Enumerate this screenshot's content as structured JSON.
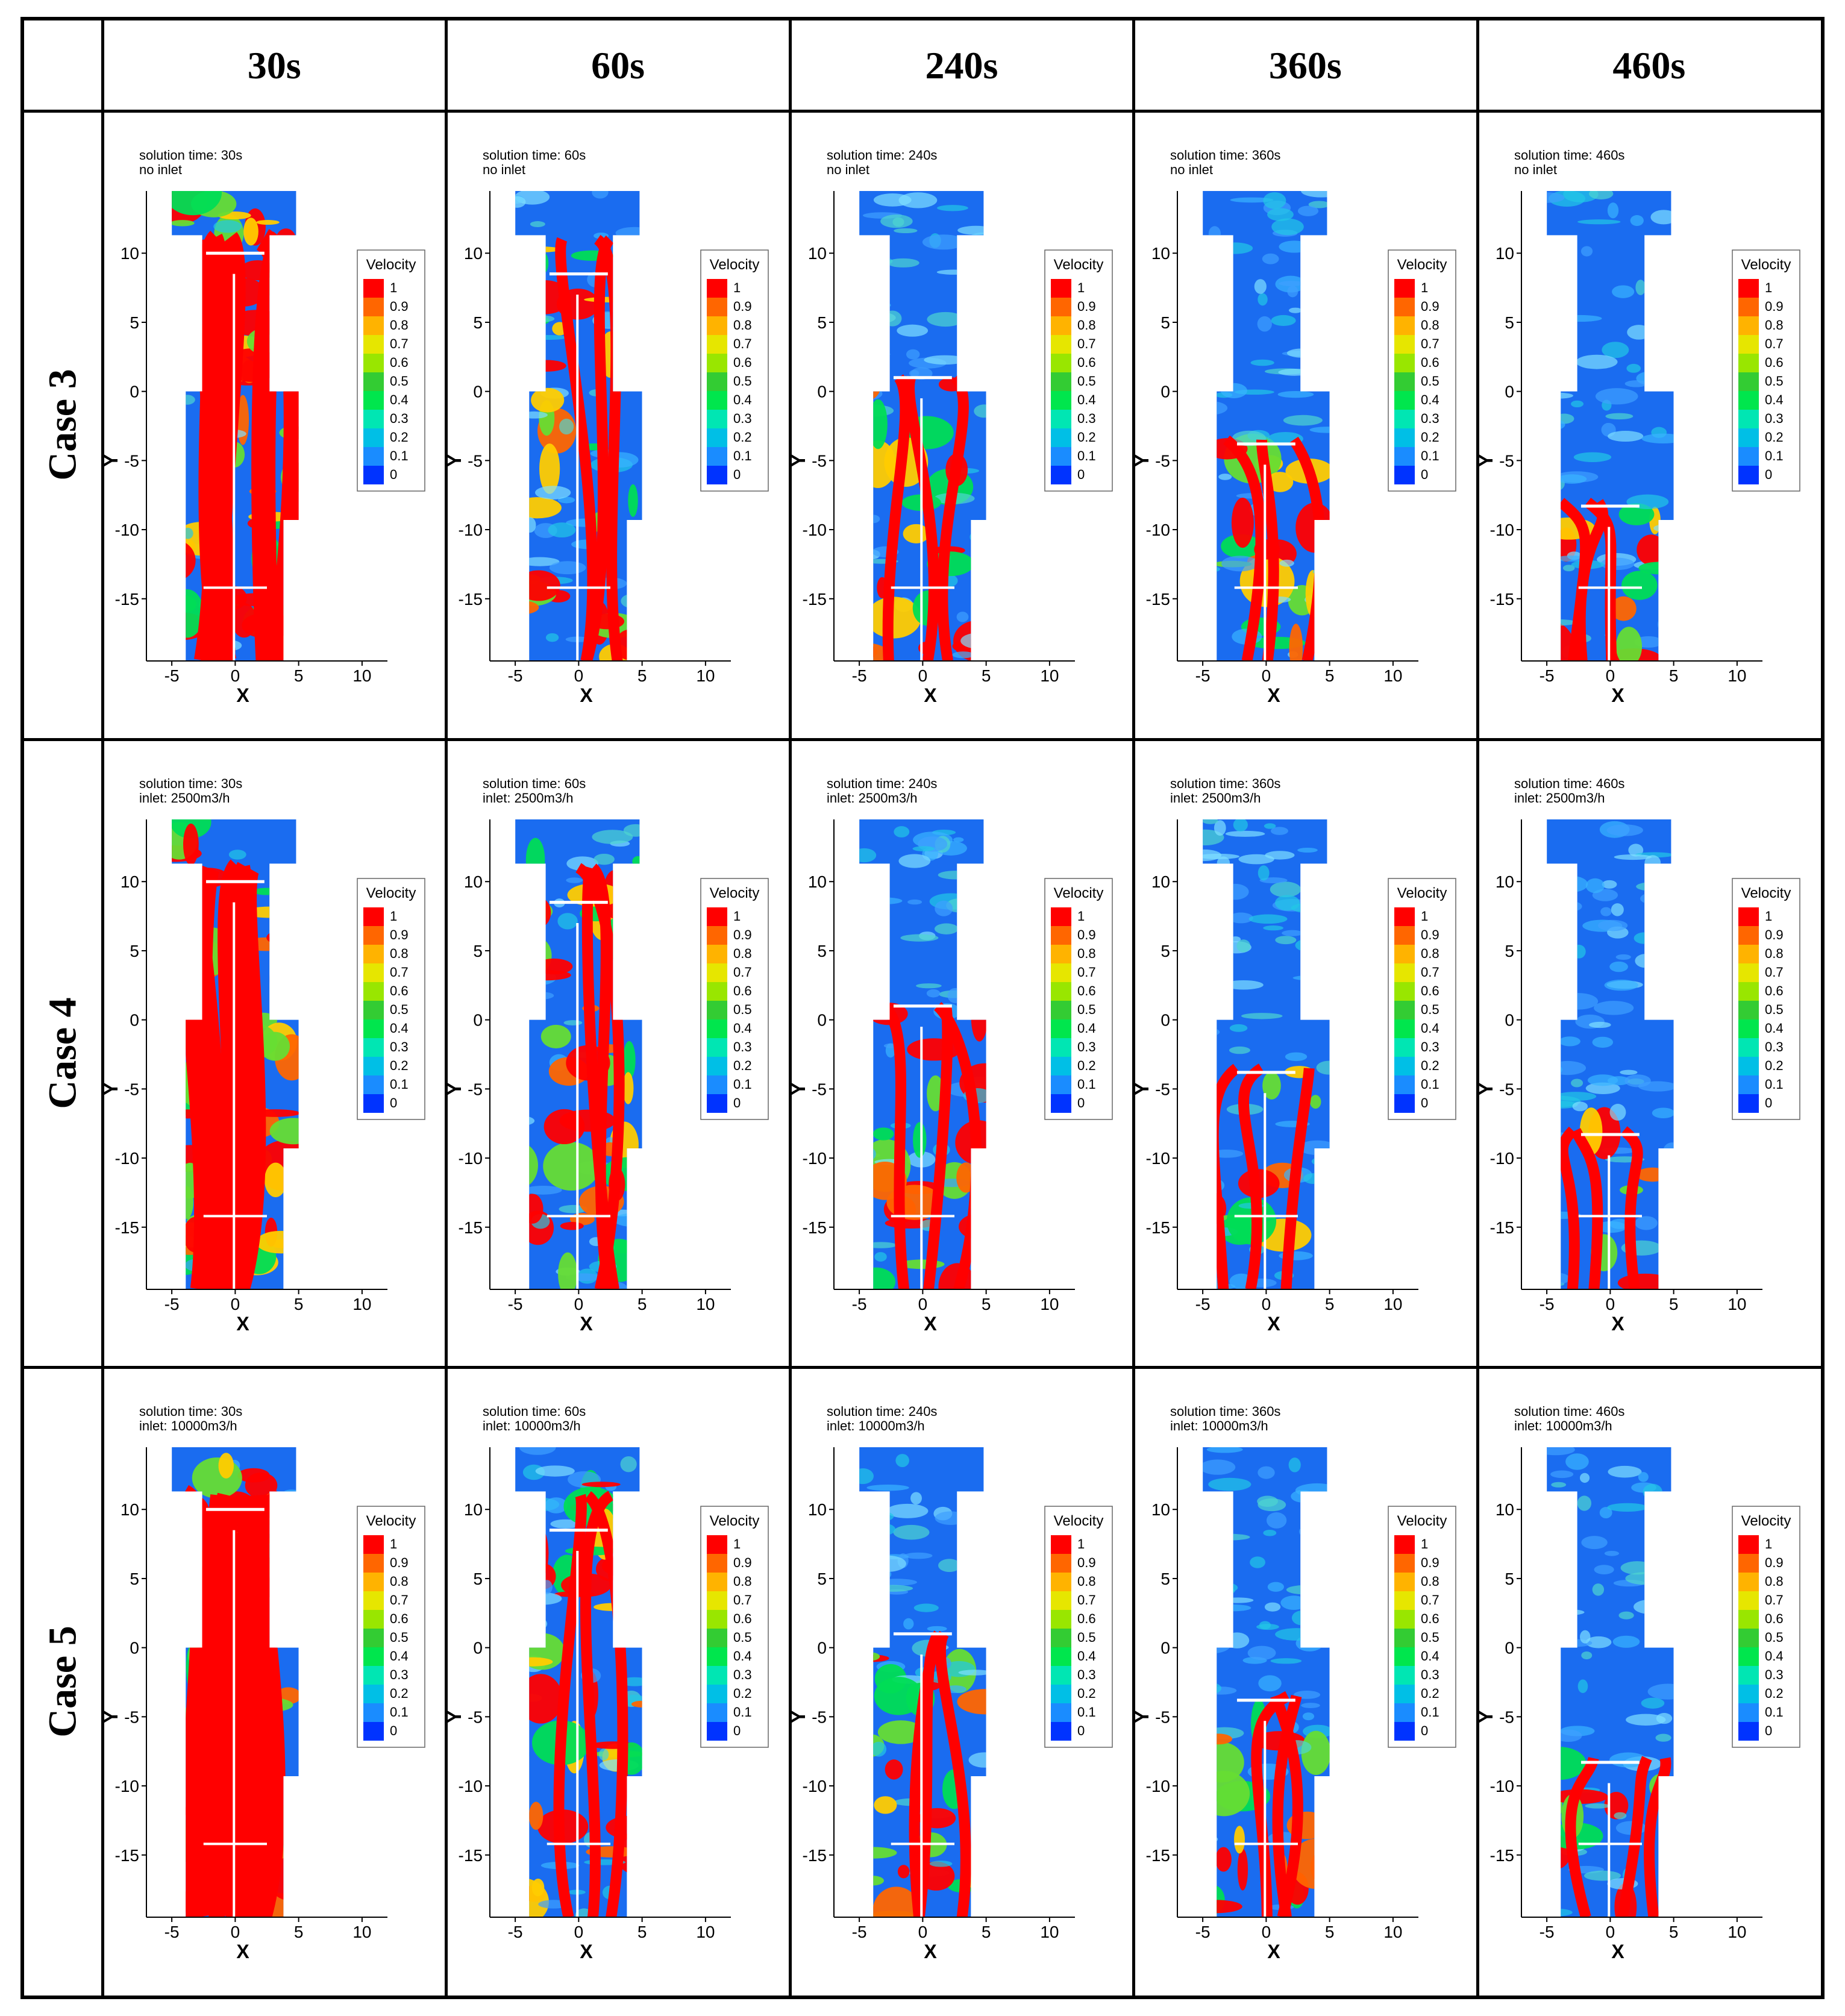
{
  "columns": [
    "30s",
    "60s",
    "240s",
    "360s",
    "460s"
  ],
  "rows": [
    {
      "label": "Case 3",
      "inlet": "no inlet"
    },
    {
      "label": "Case 4",
      "inlet": "inlet: 2500m3/h"
    },
    {
      "label": "Case 5",
      "inlet": "inlet: 10000m3/h"
    }
  ],
  "solution_time_prefix": "solution time: ",
  "axis": {
    "x_label": "X",
    "y_label": "Y",
    "x_ticks": [
      "-5",
      "0",
      "5",
      "10"
    ],
    "y_ticks": [
      "10",
      "5",
      "0",
      "-5",
      "-10",
      "-15"
    ]
  },
  "legend": {
    "title": "Velocity",
    "levels": [
      "1",
      "0.9",
      "0.8",
      "0.7",
      "0.6",
      "0.5",
      "0.4",
      "0.3",
      "0.2",
      "0.1",
      "0"
    ],
    "colors": [
      "#ff0000",
      "#ff6600",
      "#ffb300",
      "#e6e600",
      "#99e600",
      "#33cc33",
      "#00e64d",
      "#00e6b3",
      "#00bfe6",
      "#1a8cff",
      "#0033ff"
    ]
  },
  "background_color": "#1a6cf0"
}
